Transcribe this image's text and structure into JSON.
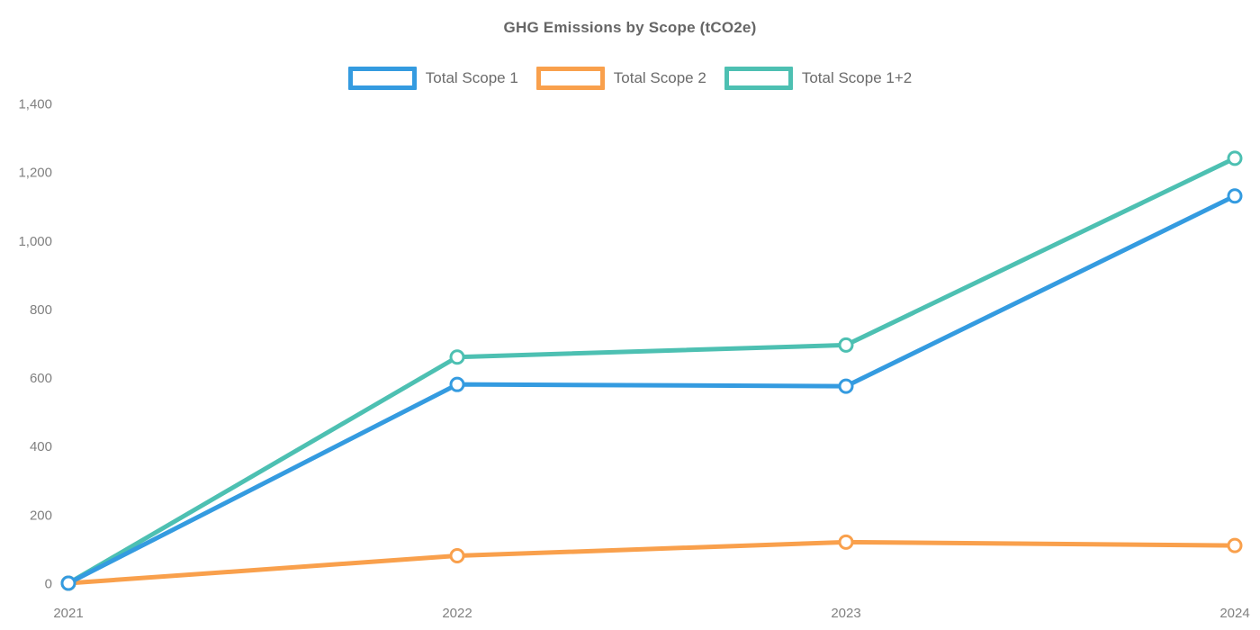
{
  "chart_data": {
    "type": "line",
    "title": "GHG Emissions by Scope (tCO2e)",
    "categories": [
      "2021",
      "2022",
      "2023",
      "2024"
    ],
    "series": [
      {
        "name": "Total Scope 1",
        "color": "#349BE0",
        "values": [
          0,
          580,
          575,
          1130
        ]
      },
      {
        "name": "Total Scope 2",
        "color": "#F9A04C",
        "values": [
          0,
          80,
          120,
          110
        ]
      },
      {
        "name": "Total Scope 1+2",
        "color": "#4DC0B2",
        "values": [
          0,
          660,
          695,
          1240
        ]
      }
    ],
    "xlabel": "",
    "ylabel": "",
    "ylim": [
      0,
      1400
    ],
    "yticks": [
      0,
      200,
      400,
      600,
      800,
      1000,
      1200,
      1400
    ],
    "ytick_labels": [
      "0",
      "200",
      "400",
      "600",
      "800",
      "1,000",
      "1,200",
      "1,400"
    ],
    "grid": false,
    "legend_position": "top",
    "marker": "hollow-circle",
    "colors": {
      "title_text": "#666666",
      "legend_text": "#6B6B6B",
      "axis_text": "#808080",
      "background": "#FFFFFF"
    }
  }
}
